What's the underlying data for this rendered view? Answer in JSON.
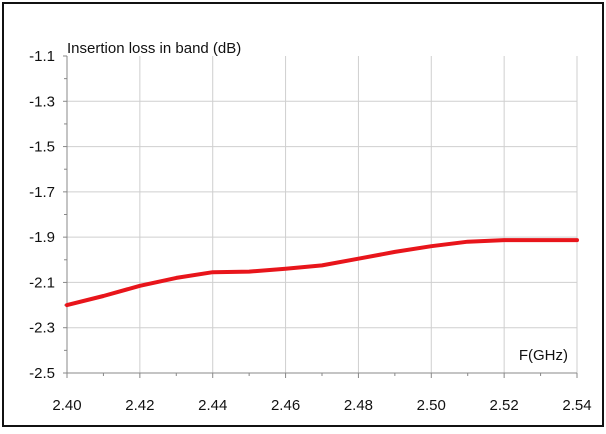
{
  "chart_data": {
    "type": "line",
    "title": "Insertion loss in band (dB)",
    "xlabel": "F(GHz)",
    "ylabel": "",
    "xlim": [
      2.4,
      2.54
    ],
    "ylim": [
      -2.5,
      -1.1
    ],
    "x_ticks": [
      "2.40",
      "2.42",
      "2.44",
      "2.46",
      "2.48",
      "2.50",
      "2.52",
      "2.54"
    ],
    "y_ticks": [
      "-1.1",
      "-1.3",
      "-1.5",
      "-1.7",
      "-1.9",
      "-2.1",
      "-2.3",
      "-2.5"
    ],
    "grid": true,
    "series": [
      {
        "color": "#e8151b",
        "x": [
          2.4,
          2.41,
          2.42,
          2.43,
          2.44,
          2.45,
          2.46,
          2.47,
          2.48,
          2.49,
          2.5,
          2.51,
          2.52,
          2.53,
          2.54
        ],
        "y": [
          -2.2,
          -2.16,
          -2.115,
          -2.08,
          -2.055,
          -2.052,
          -2.04,
          -2.025,
          -1.995,
          -1.965,
          -1.94,
          -1.92,
          -1.913,
          -1.913,
          -1.913
        ]
      }
    ]
  },
  "colors": {
    "grid": "#cfcfcf",
    "axis": "#888888",
    "frame": "#111111"
  }
}
